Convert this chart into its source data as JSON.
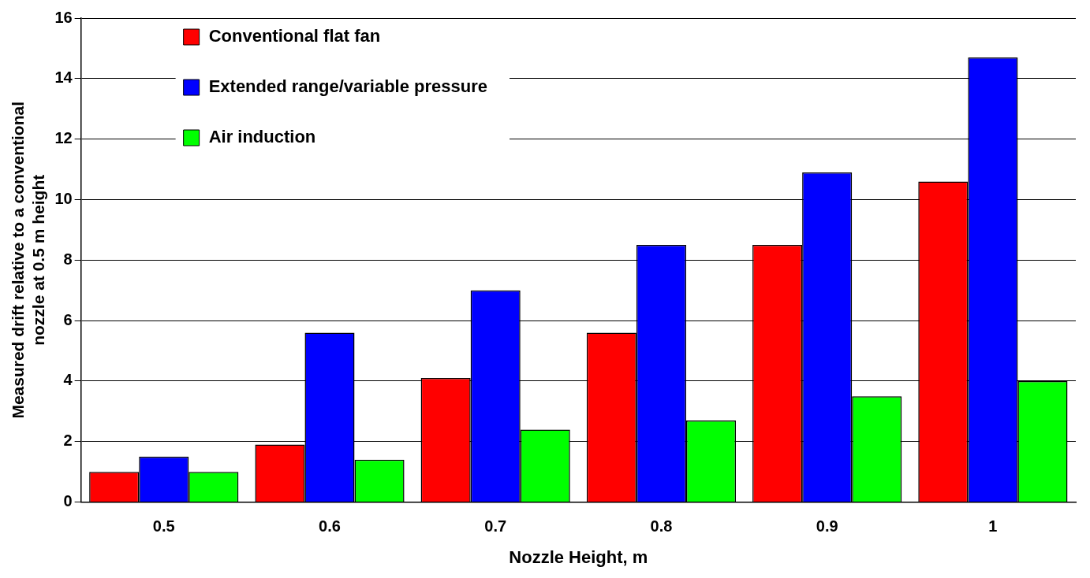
{
  "chart_data": {
    "type": "bar",
    "xlabel": "Nozzle Height, m",
    "ylabel": "Measured drift relative to a conventional\nnozzle at 0.5 m height",
    "categories": [
      "0.5",
      "0.6",
      "0.7",
      "0.8",
      "0.9",
      "1"
    ],
    "series": [
      {
        "name": "Conventional flat fan",
        "color": "#ff0000",
        "values": [
          1.0,
          1.9,
          4.1,
          5.6,
          8.5,
          10.6
        ]
      },
      {
        "name": "Extended range/variable pressure",
        "color": "#0000ff",
        "values": [
          1.5,
          5.6,
          7.0,
          8.5,
          10.9,
          14.7
        ]
      },
      {
        "name": "Air induction",
        "color": "#00ff00",
        "values": [
          1.0,
          1.4,
          2.4,
          2.7,
          3.5,
          4.0
        ]
      }
    ],
    "ylim": [
      0,
      16
    ],
    "yticks": [
      0,
      2,
      4,
      6,
      8,
      10,
      12,
      14,
      16
    ],
    "grid": "y",
    "legend": "top left"
  }
}
